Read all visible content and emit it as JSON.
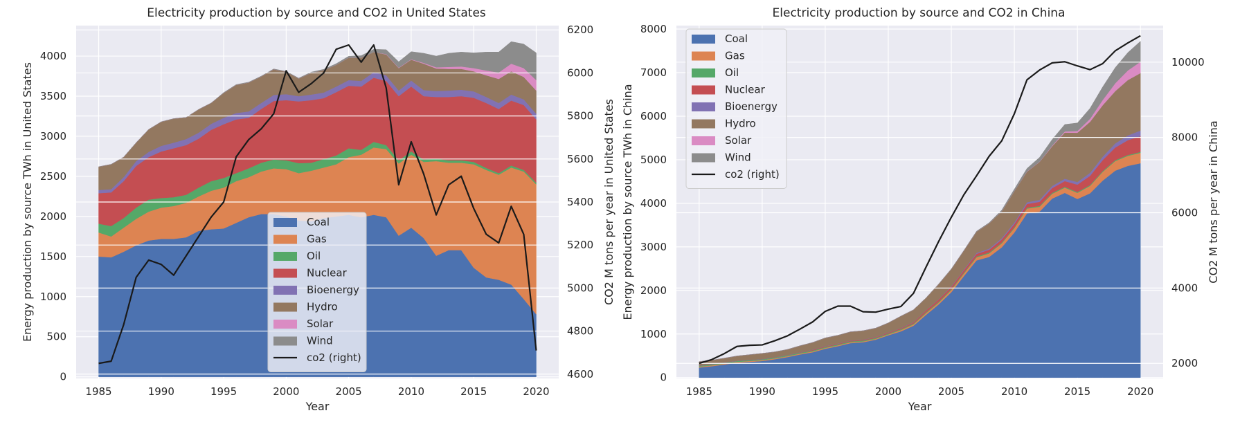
{
  "colors": {
    "plot_bg": "#EAEAF2",
    "grid": "#FFFFFF",
    "co2_line": "#1a1a1a",
    "legend_bg": "#F0F0F6",
    "legend_border": "#CCCCCC"
  },
  "chart_data": [
    {
      "type": "area",
      "stacked": true,
      "title": "Electricity production by source and CO2 in United States",
      "xlabel": "Year",
      "ylabel": "Energy production by source TWh in United States",
      "ylabel_right": "CO2 M tons per year in United States",
      "x": [
        1985,
        1986,
        1987,
        1988,
        1989,
        1990,
        1991,
        1992,
        1993,
        1994,
        1995,
        1996,
        1997,
        1998,
        1999,
        2000,
        2001,
        2002,
        2003,
        2004,
        2005,
        2006,
        2007,
        2008,
        2009,
        2010,
        2011,
        2012,
        2013,
        2014,
        2015,
        2016,
        2017,
        2018,
        2019,
        2020
      ],
      "xlim": [
        1983.2,
        2021.8
      ],
      "xticks": [
        1985,
        1990,
        1995,
        2000,
        2005,
        2010,
        2015,
        2020
      ],
      "ylim": [
        -20,
        4380
      ],
      "yticks": [
        0,
        500,
        1000,
        1500,
        2000,
        2500,
        3000,
        3500,
        4000
      ],
      "ylim_right": [
        4580,
        6220
      ],
      "yticks_right": [
        4600,
        4800,
        5000,
        5200,
        5400,
        5600,
        5800,
        6000,
        6200
      ],
      "legend_loc": "lower center",
      "grid": true,
      "series": [
        {
          "name": "Coal",
          "color": "#4C72B0",
          "values": [
            1500,
            1490,
            1560,
            1640,
            1700,
            1720,
            1720,
            1740,
            1820,
            1840,
            1850,
            1920,
            1990,
            2030,
            2030,
            2000,
            1950,
            1940,
            1980,
            2000,
            2020,
            1990,
            2020,
            1990,
            1760,
            1860,
            1730,
            1510,
            1580,
            1580,
            1360,
            1240,
            1210,
            1150,
            970,
            780
          ]
        },
        {
          "name": "Gas",
          "color": "#DD8452",
          "values": [
            300,
            260,
            300,
            330,
            360,
            390,
            410,
            430,
            430,
            480,
            510,
            520,
            500,
            530,
            570,
            590,
            590,
            630,
            630,
            650,
            720,
            780,
            840,
            850,
            900,
            910,
            950,
            1180,
            1090,
            1090,
            1290,
            1340,
            1310,
            1460,
            1590,
            1620
          ]
        },
        {
          "name": "Oil",
          "color": "#55A868",
          "values": [
            110,
            130,
            120,
            140,
            150,
            120,
            110,
            100,
            110,
            120,
            120,
            100,
            110,
            110,
            110,
            110,
            125,
            100,
            105,
            110,
            110,
            60,
            70,
            50,
            40,
            40,
            30,
            30,
            30,
            30,
            30,
            25,
            20,
            25,
            20,
            20
          ]
        },
        {
          "name": "Nuclear",
          "color": "#C44E52",
          "values": [
            380,
            420,
            460,
            520,
            530,
            580,
            610,
            620,
            610,
            640,
            670,
            670,
            630,
            670,
            730,
            750,
            770,
            780,
            760,
            790,
            780,
            790,
            800,
            800,
            800,
            810,
            790,
            770,
            790,
            800,
            800,
            810,
            800,
            810,
            810,
            790
          ]
        },
        {
          "name": "Bioenergy",
          "color": "#8172B3",
          "values": [
            40,
            40,
            50,
            60,
            65,
            70,
            70,
            75,
            75,
            75,
            80,
            80,
            80,
            75,
            75,
            75,
            65,
            70,
            70,
            70,
            70,
            70,
            70,
            70,
            70,
            75,
            75,
            75,
            80,
            80,
            80,
            75,
            75,
            75,
            70,
            70
          ]
        },
        {
          "name": "Hydro",
          "color": "#937860",
          "values": [
            290,
            310,
            250,
            230,
            280,
            300,
            300,
            270,
            290,
            260,
            310,
            350,
            360,
            330,
            320,
            280,
            220,
            270,
            280,
            270,
            280,
            290,
            250,
            260,
            280,
            260,
            330,
            280,
            270,
            260,
            250,
            270,
            300,
            290,
            280,
            290
          ]
        },
        {
          "name": "Solar",
          "color": "#DA8BC3",
          "values": [
            0,
            0,
            0,
            0,
            0,
            0,
            0,
            0,
            0,
            0,
            0,
            0,
            0,
            0,
            0,
            0,
            0,
            0,
            0,
            0,
            0,
            0,
            0,
            5,
            5,
            5,
            10,
            15,
            25,
            30,
            40,
            60,
            80,
            95,
            110,
            130
          ]
        },
        {
          "name": "Wind",
          "color": "#8C8C8C",
          "values": [
            0,
            0,
            0,
            0,
            0,
            0,
            0,
            0,
            0,
            0,
            5,
            5,
            5,
            5,
            5,
            5,
            5,
            10,
            10,
            15,
            18,
            25,
            35,
            55,
            74,
            95,
            120,
            140,
            170,
            180,
            190,
            230,
            255,
            275,
            300,
            340
          ]
        }
      ],
      "co2": {
        "name": "co2 (right)",
        "values": [
          4650,
          4660,
          4830,
          5050,
          5130,
          5110,
          5060,
          5150,
          5240,
          5330,
          5400,
          5610,
          5690,
          5740,
          5810,
          6010,
          5910,
          5950,
          6000,
          6110,
          6130,
          6050,
          6130,
          5930,
          5480,
          5680,
          5530,
          5340,
          5480,
          5520,
          5370,
          5250,
          5210,
          5380,
          5250,
          4710
        ]
      }
    },
    {
      "type": "area",
      "stacked": true,
      "title": "Electricity production by source and CO2 in China",
      "xlabel": "Year",
      "ylabel": "Energy production by source TWh in China",
      "ylabel_right": "CO2 M tons per year in China",
      "x": [
        1985,
        1986,
        1987,
        1988,
        1989,
        1990,
        1991,
        1992,
        1993,
        1994,
        1995,
        1996,
        1997,
        1998,
        1999,
        2000,
        2001,
        2002,
        2003,
        2004,
        2005,
        2006,
        2007,
        2008,
        2009,
        2010,
        2011,
        2012,
        2013,
        2014,
        2015,
        2016,
        2017,
        2018,
        2019,
        2020
      ],
      "xlim": [
        1983.2,
        2021.8
      ],
      "xticks": [
        1985,
        1990,
        1995,
        2000,
        2005,
        2010,
        2015,
        2020
      ],
      "ylim": [
        -20,
        8080
      ],
      "yticks": [
        0,
        1000,
        2000,
        3000,
        4000,
        5000,
        6000,
        7000,
        8000
      ],
      "ylim_right": [
        1600,
        10970
      ],
      "yticks_right": [
        2000,
        4000,
        6000,
        8000,
        10000
      ],
      "legend_loc": "upper left",
      "grid": true,
      "series": [
        {
          "name": "Coal",
          "color": "#4C72B0",
          "values": [
            230,
            260,
            300,
            340,
            360,
            380,
            420,
            470,
            530,
            580,
            660,
            720,
            790,
            810,
            870,
            970,
            1060,
            1190,
            1440,
            1680,
            1960,
            2330,
            2690,
            2770,
            2990,
            3330,
            3770,
            3810,
            4110,
            4240,
            4100,
            4230,
            4520,
            4750,
            4860,
            4920
          ]
        },
        {
          "name": "Gas",
          "color": "#DD8452",
          "values": [
            20,
            20,
            20,
            20,
            20,
            20,
            20,
            20,
            20,
            20,
            20,
            20,
            20,
            20,
            20,
            20,
            30,
            30,
            40,
            40,
            50,
            60,
            70,
            80,
            90,
            100,
            110,
            110,
            110,
            120,
            140,
            170,
            200,
            220,
            230,
            240
          ]
        },
        {
          "name": "Oil",
          "color": "#55A868",
          "values": [
            20,
            20,
            20,
            20,
            20,
            20,
            20,
            20,
            20,
            20,
            20,
            20,
            20,
            20,
            20,
            20,
            20,
            20,
            20,
            20,
            20,
            20,
            20,
            20,
            20,
            20,
            20,
            20,
            20,
            20,
            20,
            20,
            20,
            20,
            20,
            20
          ]
        },
        {
          "name": "Nuclear",
          "color": "#C44E52",
          "values": [
            0,
            0,
            0,
            0,
            0,
            0,
            0,
            0,
            5,
            15,
            15,
            15,
            15,
            15,
            15,
            20,
            20,
            25,
            40,
            50,
            50,
            55,
            60,
            65,
            70,
            75,
            85,
            95,
            110,
            130,
            170,
            210,
            250,
            290,
            340,
            360
          ]
        },
        {
          "name": "Bioenergy",
          "color": "#8172B3",
          "values": [
            5,
            5,
            5,
            5,
            5,
            5,
            5,
            5,
            5,
            5,
            5,
            5,
            5,
            5,
            5,
            5,
            5,
            5,
            5,
            5,
            10,
            15,
            20,
            25,
            30,
            35,
            40,
            45,
            50,
            55,
            60,
            70,
            80,
            95,
            110,
            130
          ]
        },
        {
          "name": "Hydro",
          "color": "#937860",
          "values": [
            90,
            95,
            100,
            110,
            120,
            130,
            125,
            130,
            150,
            165,
            190,
            190,
            200,
            205,
            205,
            220,
            275,
            285,
            285,
            350,
            400,
            435,
            490,
            580,
            615,
            720,
            700,
            870,
            910,
            1060,
            1130,
            1170,
            1180,
            1200,
            1270,
            1320
          ]
        },
        {
          "name": "Solar",
          "color": "#DA8BC3",
          "values": [
            0,
            0,
            0,
            0,
            0,
            0,
            0,
            0,
            0,
            0,
            0,
            0,
            0,
            0,
            0,
            0,
            0,
            0,
            0,
            0,
            0,
            0,
            0,
            0,
            0,
            0,
            5,
            5,
            15,
            25,
            40,
            70,
            120,
            180,
            220,
            260
          ]
        },
        {
          "name": "Wind",
          "color": "#8C8C8C",
          "values": [
            0,
            0,
            0,
            0,
            0,
            0,
            0,
            0,
            0,
            0,
            0,
            0,
            0,
            0,
            0,
            0,
            0,
            0,
            0,
            5,
            5,
            5,
            10,
            15,
            30,
            45,
            70,
            100,
            140,
            160,
            185,
            240,
            300,
            360,
            410,
            470
          ]
        }
      ],
      "co2": {
        "name": "co2 (right)",
        "values": [
          2000,
          2100,
          2260,
          2450,
          2480,
          2490,
          2600,
          2730,
          2910,
          3100,
          3380,
          3520,
          3520,
          3370,
          3360,
          3440,
          3510,
          3860,
          4560,
          5240,
          5880,
          6480,
          6980,
          7500,
          7910,
          8630,
          9530,
          9790,
          9980,
          10010,
          9900,
          9800,
          9960,
          10300,
          10510,
          10700
        ]
      }
    }
  ]
}
